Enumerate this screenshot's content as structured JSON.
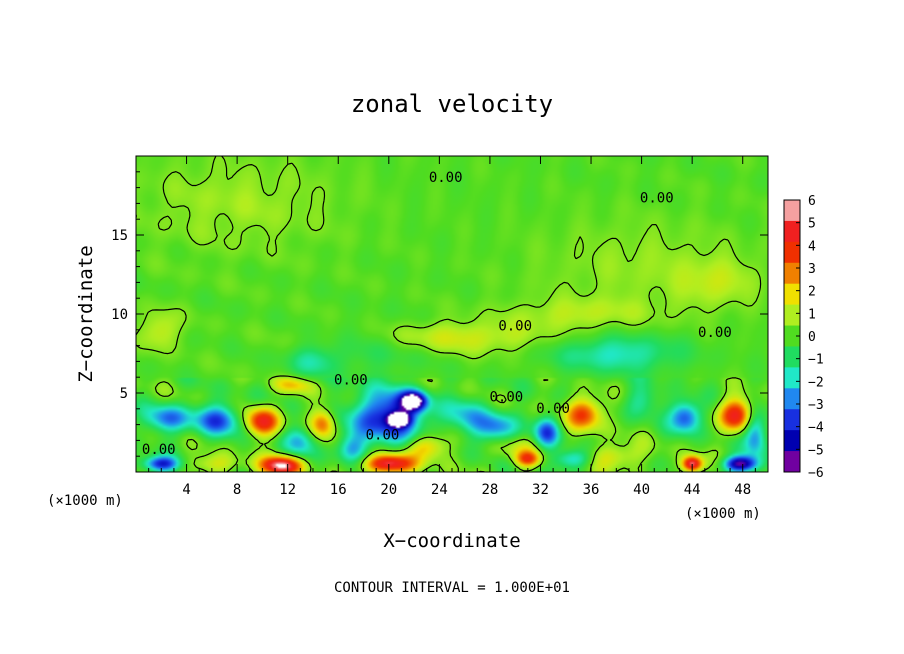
{
  "chart_data": {
    "type": "heatmap",
    "title": "zonal velocity",
    "xlabel": "X−coordinate",
    "ylabel": "Z−coordinate",
    "x_unit": "(×1000 m)",
    "z_unit": "(×1000 m)",
    "xlim": [
      0,
      50
    ],
    "ylim": [
      0,
      20
    ],
    "x_ticks": [
      4,
      8,
      12,
      16,
      20,
      24,
      28,
      32,
      36,
      40,
      44,
      48
    ],
    "y_ticks": [
      5,
      10,
      15
    ],
    "colorbar": {
      "levels": [
        6,
        5,
        4,
        3,
        2,
        1,
        0,
        -1,
        -2,
        -3,
        -4,
        -5,
        -6
      ],
      "labels": [
        "6",
        "5",
        "4",
        "3",
        "2",
        "1",
        "0",
        "−1",
        "−2",
        "−3",
        "−4",
        "−5",
        "−6"
      ],
      "colors": [
        "#f5a0a0",
        "#f02020",
        "#f03000",
        "#f08000",
        "#f0e000",
        "#b0ee20",
        "#50dc20",
        "#20dc60",
        "#20e8c8",
        "#2088f0",
        "#1830e0",
        "#0000b0",
        "#7000a0"
      ]
    },
    "contour_labels": [
      {
        "text": "0.00",
        "x": 24.5,
        "z": 18.6
      },
      {
        "text": "0.00",
        "x": 41.2,
        "z": 17.3
      },
      {
        "text": "0.00",
        "x": 30.0,
        "z": 9.2
      },
      {
        "text": "0.00",
        "x": 45.8,
        "z": 8.8
      },
      {
        "text": "0.00",
        "x": 17.0,
        "z": 5.8
      },
      {
        "text": "0.00",
        "x": 29.3,
        "z": 4.7
      },
      {
        "text": "0.00",
        "x": 33.0,
        "z": 4.0
      },
      {
        "text": "0.00",
        "x": 19.5,
        "z": 2.3
      },
      {
        "text": "0.00",
        "x": 1.8,
        "z": 1.4
      }
    ],
    "contour_interval_text": "CONTOUR INTERVAL = 1.000E+01",
    "features": [
      {
        "x": 4.5,
        "z": 1.0,
        "value": 0,
        "sx": 20,
        "sz": 4
      },
      {
        "x": 2.5,
        "z": 3.4,
        "value": -3,
        "sx": 1.8,
        "sz": 0.9
      },
      {
        "x": 6.5,
        "z": 3.3,
        "value": -3.5,
        "sx": 2.0,
        "sz": 1.0
      },
      {
        "x": 6.0,
        "z": 0.5,
        "value": 1.5,
        "sx": 2.5,
        "sz": 0.6
      },
      {
        "x": 10.0,
        "z": 3.2,
        "value": 4.5,
        "sx": 1.4,
        "sz": 0.9
      },
      {
        "x": 11.5,
        "z": 0.4,
        "value": 6.0,
        "sx": 1.6,
        "sz": 0.6
      },
      {
        "x": 13.0,
        "z": 2.0,
        "value": -2.5,
        "sx": 1.2,
        "sz": 1.0
      },
      {
        "x": 14.8,
        "z": 3.1,
        "value": 3.5,
        "sx": 1.0,
        "sz": 0.9
      },
      {
        "x": 12.5,
        "z": 5.5,
        "value": 2.0,
        "sx": 1.5,
        "sz": 0.5
      },
      {
        "x": 2.0,
        "z": 0.5,
        "value": -4.5,
        "sx": 1.5,
        "sz": 0.5
      },
      {
        "x": 20.0,
        "z": 3.5,
        "value": -5.0,
        "sx": 2.8,
        "sz": 1.6
      },
      {
        "x": 22.0,
        "z": 4.5,
        "value": -6.0,
        "sx": 1.0,
        "sz": 0.6
      },
      {
        "x": 20.8,
        "z": 3.3,
        "value": -6.0,
        "sx": 0.8,
        "sz": 0.4
      },
      {
        "x": 20.0,
        "z": 0.5,
        "value": 5.5,
        "sx": 2.0,
        "sz": 0.6
      },
      {
        "x": 23.0,
        "z": 1.6,
        "value": 3.0,
        "sx": 1.5,
        "sz": 0.8
      },
      {
        "x": 17.0,
        "z": 1.5,
        "value": -2.5,
        "sx": 1.2,
        "sz": 0.9
      },
      {
        "x": 26.0,
        "z": 3.5,
        "value": -2.0,
        "sx": 1.8,
        "sz": 1.2
      },
      {
        "x": 28.5,
        "z": 2.8,
        "value": -3.0,
        "sx": 1.6,
        "sz": 1.0
      },
      {
        "x": 30.0,
        "z": 1.5,
        "value": 1.0,
        "sx": 2.5,
        "sz": 0.8
      },
      {
        "x": 31.0,
        "z": 0.8,
        "value": 3.5,
        "sx": 1.0,
        "sz": 0.5
      },
      {
        "x": 32.5,
        "z": 2.5,
        "value": -3.5,
        "sx": 1.0,
        "sz": 1.0
      },
      {
        "x": 35.5,
        "z": 3.7,
        "value": 4.0,
        "sx": 1.4,
        "sz": 1.0
      },
      {
        "x": 34.5,
        "z": 0.8,
        "value": -2.5,
        "sx": 1.5,
        "sz": 0.6
      },
      {
        "x": 40.0,
        "z": 4.5,
        "value": -1.5,
        "sx": 1.5,
        "sz": 1.0
      },
      {
        "x": 43.5,
        "z": 3.5,
        "value": -4.0,
        "sx": 1.2,
        "sz": 1.0
      },
      {
        "x": 44.0,
        "z": 0.5,
        "value": 6.0,
        "sx": 0.8,
        "sz": 0.5
      },
      {
        "x": 47.5,
        "z": 3.6,
        "value": 5.0,
        "sx": 1.3,
        "sz": 1.0
      },
      {
        "x": 49.0,
        "z": 2.5,
        "value": -3.5,
        "sx": 0.9,
        "sz": 1.5
      },
      {
        "x": 47.8,
        "z": 0.5,
        "value": -6.0,
        "sx": 1.3,
        "sz": 0.5
      },
      {
        "x": 38.0,
        "z": 1.0,
        "value": 2.0,
        "sx": 2.0,
        "sz": 0.8
      },
      {
        "x": 25.0,
        "z": 8.5,
        "value": 1.5,
        "sx": 8.0,
        "sz": 1.0
      },
      {
        "x": 35.0,
        "z": 10.0,
        "value": 1.0,
        "sx": 6.0,
        "sz": 1.0
      },
      {
        "x": 38.0,
        "z": 7.5,
        "value": -2.0,
        "sx": 5.0,
        "sz": 1.2
      },
      {
        "x": 19.0,
        "z": 8.0,
        "value": -1.0,
        "sx": 4.0,
        "sz": 1.5
      },
      {
        "x": 14.0,
        "z": 7.0,
        "value": -1.5,
        "sx": 2.0,
        "sz": 1.0
      },
      {
        "x": 2.0,
        "z": 9.0,
        "value": 1.5,
        "sx": 1.5,
        "sz": 1.2
      },
      {
        "x": 8.0,
        "z": 17.0,
        "value": 0.8,
        "sx": 8.0,
        "sz": 3.0
      },
      {
        "x": 40.0,
        "z": 13.0,
        "value": 0.7,
        "sx": 8.0,
        "sz": 3.0
      },
      {
        "x": 46.0,
        "z": 12.0,
        "value": 1.0,
        "sx": 3.0,
        "sz": 1.5
      }
    ]
  }
}
